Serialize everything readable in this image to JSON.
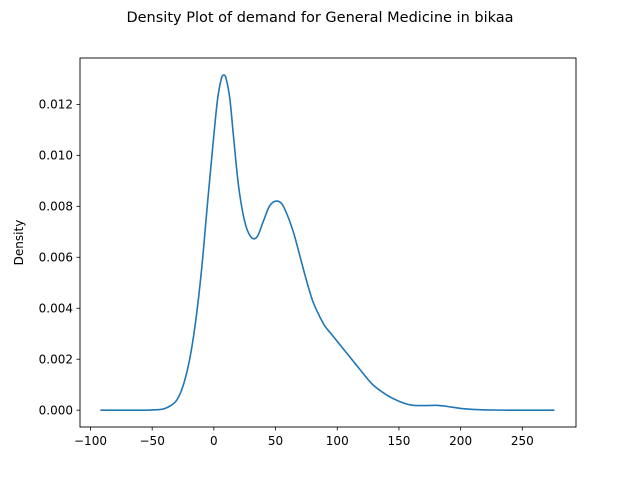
{
  "chart_data": {
    "type": "line",
    "title": "Density Plot of demand for General Medicine in bikaa",
    "xlabel": "",
    "ylabel": "Density",
    "xlim": [
      -108.5,
      293.5
    ],
    "ylim": [
      -0.00066,
      0.01382
    ],
    "xticks": [
      -100,
      -50,
      0,
      50,
      100,
      150,
      200,
      250
    ],
    "xtick_labels": [
      "−100",
      "−50",
      "0",
      "50",
      "100",
      "150",
      "200",
      "250"
    ],
    "yticks": [
      0.0,
      0.002,
      0.004,
      0.006,
      0.008,
      0.01,
      0.012
    ],
    "ytick_labels": [
      "0.000",
      "0.002",
      "0.004",
      "0.006",
      "0.008",
      "0.010",
      "0.012"
    ],
    "grid": false,
    "line_color": "#1f77b4",
    "series": [
      {
        "x": [
          -92,
          -60,
          -45,
          -40,
          -35,
          -30,
          -25,
          -20,
          -15,
          -10,
          -5,
          0,
          3,
          6,
          8,
          10,
          13,
          16,
          20,
          25,
          30,
          35,
          40,
          45,
          50,
          55,
          60,
          65,
          70,
          75,
          80,
          85,
          90,
          95,
          100,
          105,
          110,
          115,
          120,
          125,
          130,
          140,
          150,
          160,
          170,
          180,
          185,
          190,
          200,
          210,
          220,
          240,
          260,
          276
        ],
        "y": [
          0.0,
          0.0,
          2e-05,
          6e-05,
          0.00018,
          0.0004,
          0.00095,
          0.0019,
          0.0034,
          0.0055,
          0.0082,
          0.0108,
          0.0122,
          0.013,
          0.01315,
          0.013,
          0.0122,
          0.0107,
          0.0088,
          0.0074,
          0.0068,
          0.0068,
          0.0074,
          0.008,
          0.0082,
          0.0081,
          0.0076,
          0.0069,
          0.006,
          0.0051,
          0.0043,
          0.00375,
          0.0033,
          0.003,
          0.0027,
          0.0024,
          0.0021,
          0.0018,
          0.0015,
          0.0012,
          0.00095,
          0.0006,
          0.00035,
          0.0002,
          0.00018,
          0.00019,
          0.00017,
          0.00014,
          7e-05,
          3e-05,
          1e-05,
          0.0,
          0.0,
          0.0
        ]
      }
    ]
  }
}
